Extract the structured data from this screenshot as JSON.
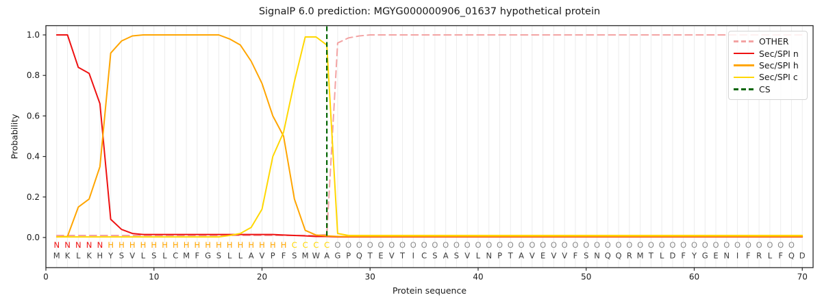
{
  "title": "SignalP 6.0 prediction: MGYG000000906_01637 hypothetical protein",
  "chart_data": {
    "type": "line",
    "title": "SignalP 6.0 prediction: MGYG000000906_01637 hypothetical protein",
    "xlabel": "Protein sequence",
    "ylabel": "Probability",
    "xlim": [
      0,
      71
    ],
    "ylim": [
      -0.15,
      1.05
    ],
    "x_ticks": [
      0,
      10,
      20,
      30,
      40,
      50,
      60,
      70
    ],
    "y_ticks": [
      "0.0",
      "0.2",
      "0.4",
      "0.6",
      "0.8",
      "1.0"
    ],
    "grid": "vertical gridline at every residue position",
    "legend_position": "upper right",
    "x": [
      1,
      2,
      3,
      4,
      5,
      6,
      7,
      8,
      9,
      10,
      11,
      12,
      13,
      14,
      15,
      16,
      17,
      18,
      19,
      20,
      21,
      22,
      23,
      24,
      25,
      26,
      27,
      28,
      29,
      30,
      31,
      32,
      33,
      34,
      35,
      36,
      37,
      38,
      39,
      40,
      41,
      42,
      43,
      44,
      45,
      46,
      47,
      48,
      49,
      50,
      51,
      52,
      53,
      54,
      55,
      56,
      57,
      58,
      59,
      60,
      61,
      62,
      63,
      64,
      65,
      66,
      67,
      68,
      69,
      70
    ],
    "series": [
      {
        "name": "OTHER",
        "color": "#f3a3a3",
        "style": "dashed",
        "values": [
          0.01,
          0.01,
          0.01,
          0.01,
          0.01,
          0.01,
          0.01,
          0.01,
          0.01,
          0.01,
          0.01,
          0.01,
          0.01,
          0.01,
          0.01,
          0.01,
          0.01,
          0.01,
          0.01,
          0.01,
          0.01,
          0.01,
          0.01,
          0.01,
          0.01,
          0.015,
          0.96,
          0.985,
          0.995,
          1.0,
          1.0,
          1.0,
          1.0,
          1.0,
          1.0,
          1.0,
          1.0,
          1.0,
          1.0,
          1.0,
          1.0,
          1.0,
          1.0,
          1.0,
          1.0,
          1.0,
          1.0,
          1.0,
          1.0,
          1.0,
          1.0,
          1.0,
          1.0,
          1.0,
          1.0,
          1.0,
          1.0,
          1.0,
          1.0,
          1.0,
          1.0,
          1.0,
          1.0,
          1.0,
          1.0,
          1.0,
          1.0,
          1.0,
          1.0,
          1.0
        ]
      },
      {
        "name": "Sec/SPI n",
        "color": "#ee1111",
        "style": "solid",
        "values": [
          1.0,
          1.0,
          0.84,
          0.81,
          0.66,
          0.09,
          0.04,
          0.02,
          0.015,
          0.015,
          0.015,
          0.015,
          0.015,
          0.015,
          0.015,
          0.015,
          0.015,
          0.015,
          0.015,
          0.015,
          0.015,
          0.012,
          0.01,
          0.008,
          0.005,
          0.005,
          0.003,
          0.003,
          0.003,
          0.003,
          0.003,
          0.003,
          0.003,
          0.003,
          0.003,
          0.003,
          0.003,
          0.003,
          0.003,
          0.003,
          0.003,
          0.003,
          0.003,
          0.003,
          0.003,
          0.003,
          0.003,
          0.003,
          0.003,
          0.003,
          0.003,
          0.003,
          0.003,
          0.003,
          0.003,
          0.003,
          0.003,
          0.003,
          0.003,
          0.003,
          0.003,
          0.003,
          0.003,
          0.003,
          0.003,
          0.003,
          0.003,
          0.003,
          0.003,
          0.003
        ]
      },
      {
        "name": "Sec/SPI h",
        "color": "#ffa500",
        "style": "solid",
        "values": [
          0.003,
          0.005,
          0.15,
          0.19,
          0.35,
          0.91,
          0.97,
          0.995,
          1.0,
          1.0,
          1.0,
          1.0,
          1.0,
          1.0,
          1.0,
          1.0,
          0.98,
          0.95,
          0.87,
          0.76,
          0.6,
          0.5,
          0.19,
          0.035,
          0.012,
          0.008,
          0.005,
          0.005,
          0.005,
          0.005,
          0.005,
          0.005,
          0.005,
          0.005,
          0.005,
          0.005,
          0.005,
          0.005,
          0.005,
          0.005,
          0.005,
          0.005,
          0.005,
          0.005,
          0.005,
          0.005,
          0.005,
          0.005,
          0.005,
          0.005,
          0.005,
          0.005,
          0.005,
          0.005,
          0.005,
          0.005,
          0.005,
          0.005,
          0.005,
          0.005,
          0.005,
          0.005,
          0.005,
          0.005,
          0.005,
          0.005,
          0.005,
          0.005,
          0.005,
          0.005
        ]
      },
      {
        "name": "Sec/SPI c",
        "color": "#ffd700",
        "style": "solid",
        "values": [
          0.003,
          0.003,
          0.003,
          0.003,
          0.003,
          0.003,
          0.003,
          0.003,
          0.003,
          0.003,
          0.003,
          0.003,
          0.003,
          0.003,
          0.003,
          0.003,
          0.01,
          0.02,
          0.05,
          0.14,
          0.4,
          0.52,
          0.77,
          0.99,
          0.99,
          0.95,
          0.02,
          0.01,
          0.01,
          0.01,
          0.01,
          0.01,
          0.01,
          0.01,
          0.01,
          0.01,
          0.01,
          0.01,
          0.01,
          0.01,
          0.01,
          0.01,
          0.01,
          0.01,
          0.01,
          0.01,
          0.01,
          0.01,
          0.01,
          0.01,
          0.01,
          0.01,
          0.01,
          0.01,
          0.01,
          0.01,
          0.01,
          0.01,
          0.01,
          0.01,
          0.01,
          0.01,
          0.01,
          0.01,
          0.01,
          0.01,
          0.01,
          0.01,
          0.01,
          0.01
        ]
      }
    ],
    "cs_marker": {
      "name": "CS",
      "position": 26,
      "color": "#006400",
      "style": "dashed"
    }
  },
  "sequence": {
    "residues": "MKLKHYSVLSLCMFGSLLAVPFSMWAGPQTEVTICSASVLNPTAVEVVFSNQQRMTLDFYGENIFRLFQD",
    "annotation": "NNNNNHHHHHHHHHHHHHHHHHCCCCOOOOOOOOOOOOOOOOOOOOOOOOOOOOOOOOOOOOOOOOOOO",
    "annotation_colors": {
      "N": "#ee1111",
      "H": "#ffa500",
      "C": "#ffd700",
      "O": "#8c8c8c"
    },
    "residue_color": "#3d3d3d"
  },
  "legend": {
    "entries": [
      {
        "label": "OTHER",
        "color": "#f3a3a3",
        "style": "dashed"
      },
      {
        "label": "Sec/SPI n",
        "color": "#ee1111",
        "style": "solid"
      },
      {
        "label": "Sec/SPI h",
        "color": "#ffa500",
        "style": "solid"
      },
      {
        "label": "Sec/SPI c",
        "color": "#ffd700",
        "style": "solid"
      },
      {
        "label": "CS",
        "color": "#006400",
        "style": "dashed"
      }
    ]
  },
  "colors": {
    "background": "#ffffff",
    "gridline": "#ececec",
    "spine": "#262626",
    "tick_text": "#1a1a1a"
  }
}
